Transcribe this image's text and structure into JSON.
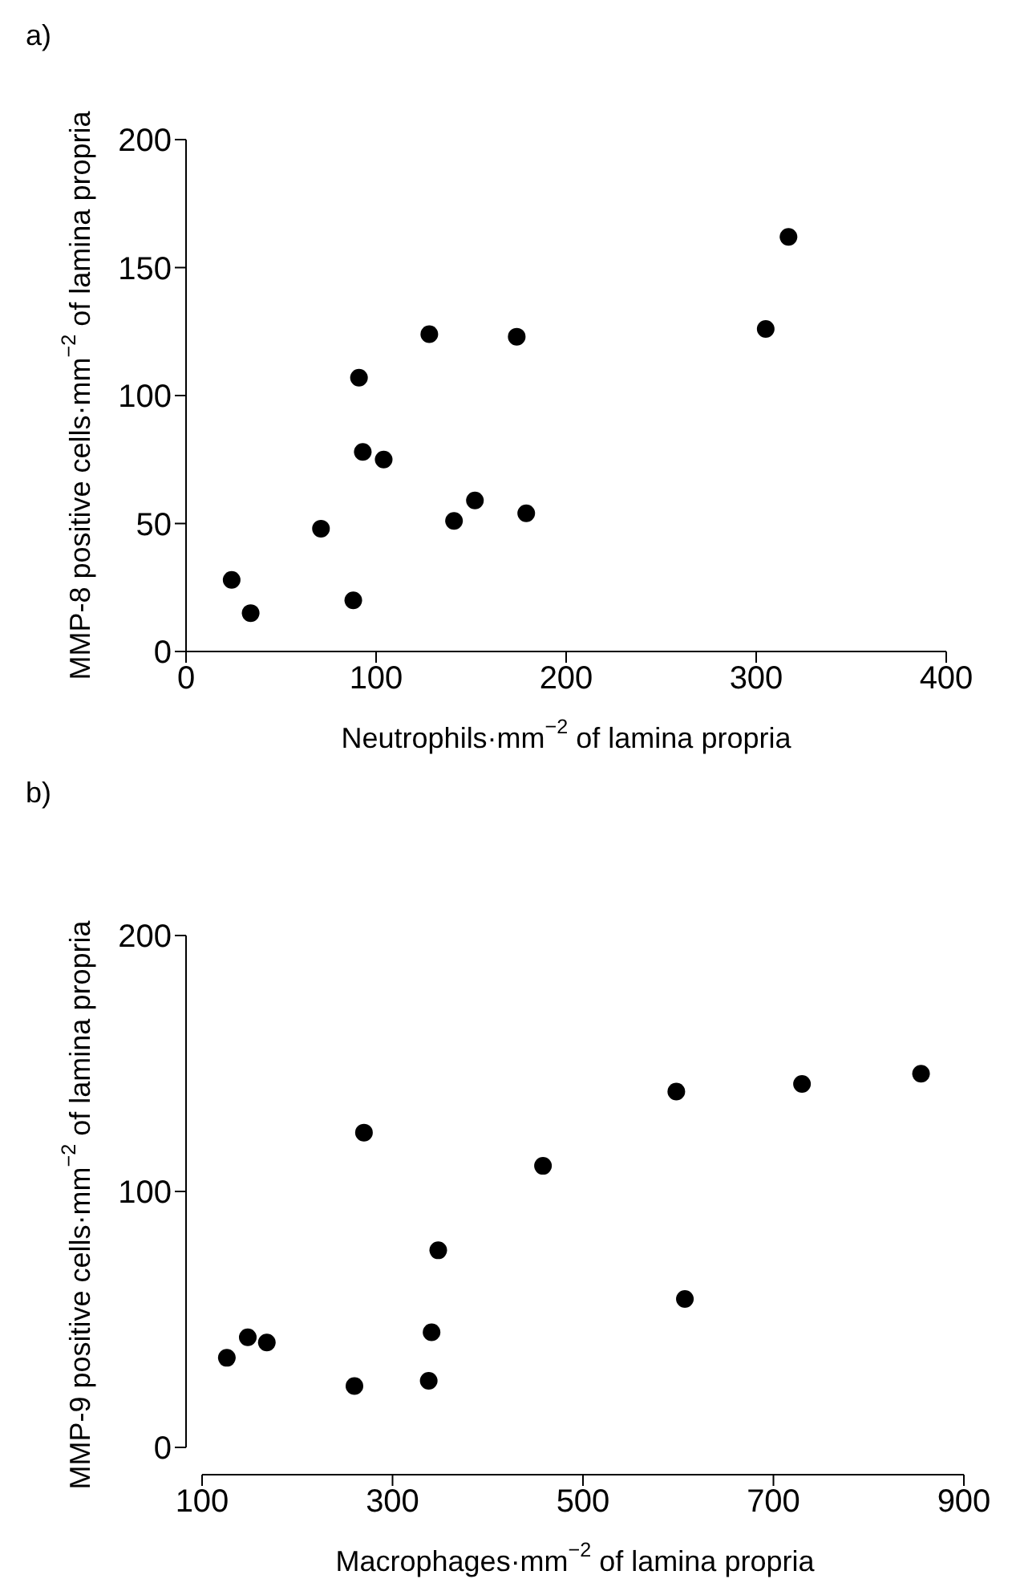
{
  "chart_data": [
    {
      "type": "scatter",
      "title": "a)",
      "xlabel": "Neutrophils·mm$^{−2}$ of lamina propria",
      "ylabel": "MMP-8 positive cells·mm$^{−2}$ of lamina propria",
      "x": [
        24,
        34,
        71,
        88,
        91,
        93,
        104,
        128,
        141,
        152,
        174,
        179,
        305,
        317
      ],
      "series": [
        {
          "color": "#000000",
          "values": [
            28,
            15,
            48,
            20,
            107,
            78,
            75,
            124,
            51,
            59,
            123,
            54,
            126,
            162
          ]
        }
      ],
      "marker": "circle",
      "xlim": [
        0,
        400
      ],
      "xticks": [
        0,
        100,
        200,
        300,
        400
      ],
      "ylim": [
        0,
        200
      ],
      "yticks": [
        0,
        50,
        100,
        150,
        200
      ]
    },
    {
      "type": "scatter",
      "title": "b)",
      "xlabel": "Macrophages·mm$^{−2}$ of lamina propria",
      "ylabel": "MMP-9 positive cells·mm$^{−2}$ of lamina propria",
      "x": [
        126,
        148,
        168,
        260,
        270,
        338,
        341,
        348,
        458,
        598,
        607,
        730,
        855
      ],
      "series": [
        {
          "color": "#000000",
          "values": [
            35,
            43,
            41,
            24,
            123,
            26,
            45,
            77,
            110,
            139,
            58,
            142,
            146
          ]
        }
      ],
      "marker": "circle",
      "xlim": [
        100,
        900
      ],
      "xticks": [
        100,
        300,
        500,
        700,
        900
      ],
      "ylim": [
        0,
        200
      ],
      "yticks": [
        0,
        100,
        200
      ]
    }
  ]
}
